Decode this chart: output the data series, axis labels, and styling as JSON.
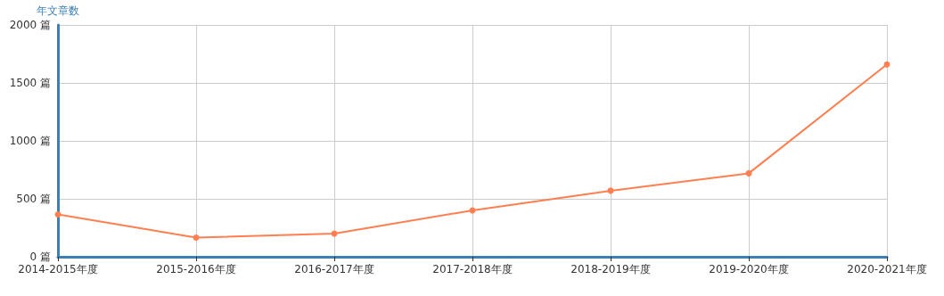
{
  "chart_data": {
    "type": "line",
    "ylabel": "年文章数",
    "categories": [
      "2014-2015年度",
      "2015-2016年度",
      "2016-2017年度",
      "2017-2018年度",
      "2018-2019年度",
      "2019-2020年度",
      "2020-2021年度"
    ],
    "series": [
      {
        "color": "#ff7f50",
        "values": [
          365,
          166,
          200,
          400,
          570,
          720,
          1660
        ]
      }
    ],
    "ylim": [
      0,
      2000
    ],
    "yticks": [
      {
        "value": 0,
        "label": "0 篇"
      },
      {
        "value": 500,
        "label": "500 篇"
      },
      {
        "value": 1000,
        "label": "1000 篇"
      },
      {
        "value": 1500,
        "label": "1500 篇"
      },
      {
        "value": 2000,
        "label": "2000 篇"
      }
    ],
    "grid": true,
    "marker": "circle",
    "line_style": "solid"
  }
}
